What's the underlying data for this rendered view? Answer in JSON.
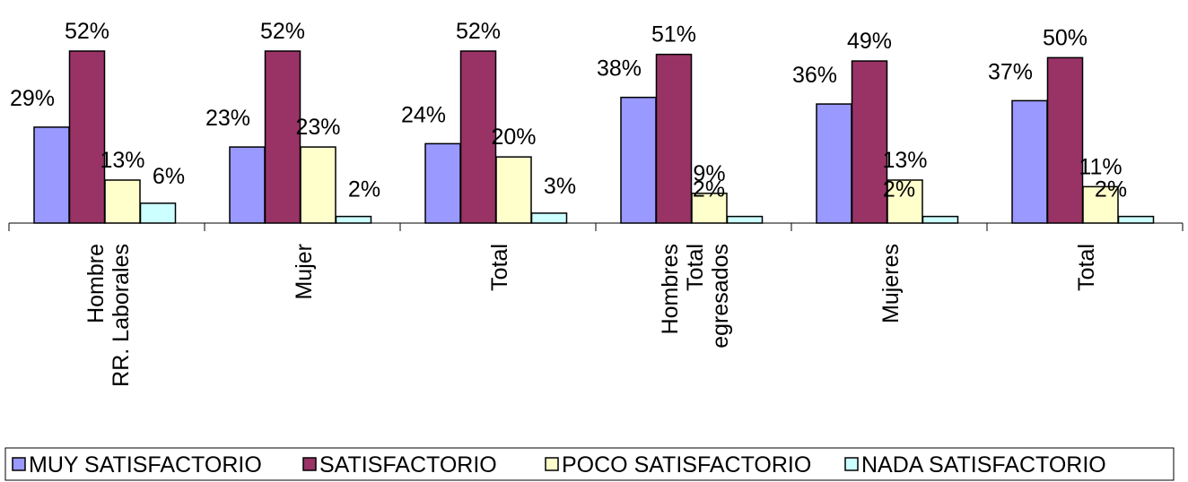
{
  "chart_data": {
    "type": "bar",
    "categories": [
      [
        "Hombre",
        "RR. Laborales"
      ],
      [
        "Mujer"
      ],
      [
        "Total"
      ],
      [
        "Hombres",
        "Total",
        "egresados"
      ],
      [
        "Mujeres"
      ],
      [
        "Total"
      ]
    ],
    "series": [
      {
        "name": "MUY SATISFACTORIO",
        "color": "#9999ff",
        "values": [
          29,
          23,
          24,
          38,
          36,
          37
        ],
        "labels": [
          "29%",
          "23%",
          "24%",
          "38%",
          "36%",
          "37%"
        ]
      },
      {
        "name": "SATISFACTORIO",
        "color": "#993366",
        "values": [
          52,
          52,
          52,
          51,
          49,
          50
        ],
        "labels": [
          "52%",
          "52%",
          "52%",
          "51%",
          "49%",
          "50%"
        ]
      },
      {
        "name": "POCO SATISFACTORIO",
        "color": "#ffffcc",
        "values": [
          13,
          23,
          20,
          9,
          13,
          11
        ],
        "labels": [
          "13%",
          "23%",
          "20%",
          "9%",
          "13%",
          "11%"
        ]
      },
      {
        "name": "NADA SATISFACTORIO",
        "color": "#ccffff",
        "values": [
          6,
          2,
          3,
          2,
          2,
          2
        ],
        "labels": [
          "6%",
          "2%",
          "3%",
          "2%",
          "2%",
          "2%"
        ]
      }
    ],
    "ylim": [
      0,
      52
    ],
    "legend_position": "bottom",
    "grid": false
  }
}
